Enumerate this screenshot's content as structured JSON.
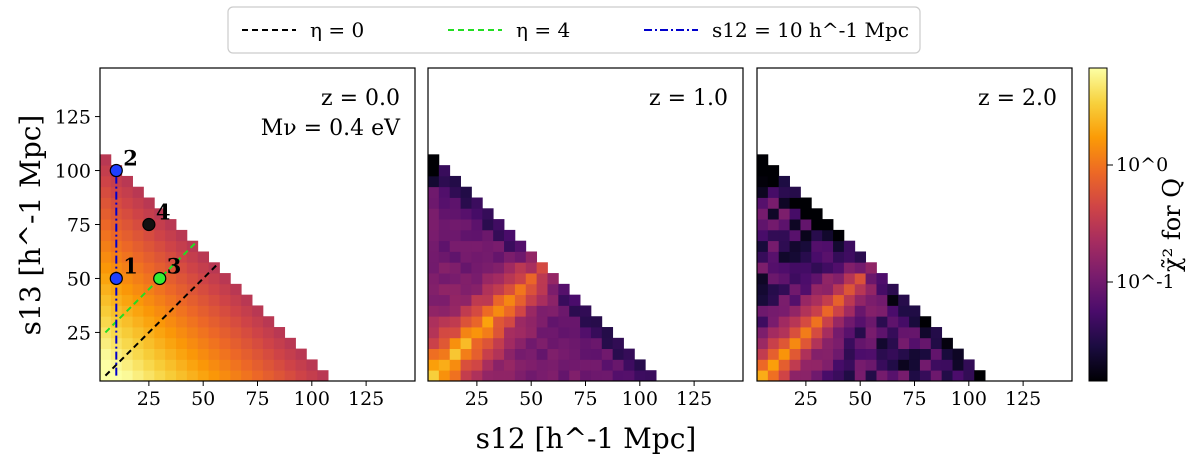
{
  "chart_data": {
    "type": "heatmap",
    "xlabel": "s12 [h^-1 Mpc]",
    "ylabel": "s13 [h^-1 Mpc]",
    "colorbar_label": "χ̃² for Q",
    "colorbar_ticks": [
      "10^0",
      "10^-1"
    ],
    "colorbar_range": [
      0.015,
      7.0
    ],
    "colormap": [
      "#000004",
      "#1b0c41",
      "#4a0c6b",
      "#781c6d",
      "#a52c60",
      "#cf4446",
      "#ed6925",
      "#fb9b06",
      "#f7d13d",
      "#fcffa4"
    ],
    "xlim": [
      2.5,
      147.5
    ],
    "ylim": [
      2.5,
      147.5
    ],
    "bin_width": 5,
    "x_ticks": [
      25,
      50,
      75,
      100,
      125
    ],
    "y_ticks": [
      25,
      50,
      75,
      100,
      125
    ],
    "panels": [
      {
        "name": "z0",
        "labels": [
          "z = 0.0",
          "Mν = 0.4 eV"
        ],
        "pattern": "smooth"
      },
      {
        "name": "z1",
        "labels": [
          "z = 1.0"
        ],
        "pattern": "band"
      },
      {
        "name": "z2",
        "labels": [
          "z = 2.0"
        ],
        "pattern": "noisy"
      }
    ],
    "legend": [
      {
        "label": "η = 0",
        "color": "#000000",
        "style": "dashed"
      },
      {
        "label": "η = 4",
        "color": "#22dd22",
        "style": "dashed"
      },
      {
        "label": "s12 = 10 h^-1 Mpc",
        "color": "#0000cc",
        "style": "dashdot"
      }
    ],
    "lines": [
      {
        "name": "eta0",
        "color": "#000000",
        "style": "dashed",
        "x": [
          5,
          57
        ],
        "y": [
          5,
          57
        ]
      },
      {
        "name": "eta4",
        "color": "#22dd22",
        "style": "dashed",
        "x": [
          5,
          47
        ],
        "y": [
          25,
          67
        ]
      },
      {
        "name": "s12-10",
        "color": "#0000cc",
        "style": "dashdot",
        "x": [
          10,
          10
        ],
        "y": [
          5,
          100
        ]
      }
    ],
    "points": [
      {
        "label": "1",
        "x": 10,
        "y": 50,
        "color": "#1f3fff"
      },
      {
        "label": "2",
        "x": 10,
        "y": 100,
        "color": "#1f3fff"
      },
      {
        "label": "3",
        "x": 30,
        "y": 50,
        "color": "#33ee33"
      },
      {
        "label": "4",
        "x": 25,
        "y": 75,
        "color": "#111111"
      }
    ]
  }
}
